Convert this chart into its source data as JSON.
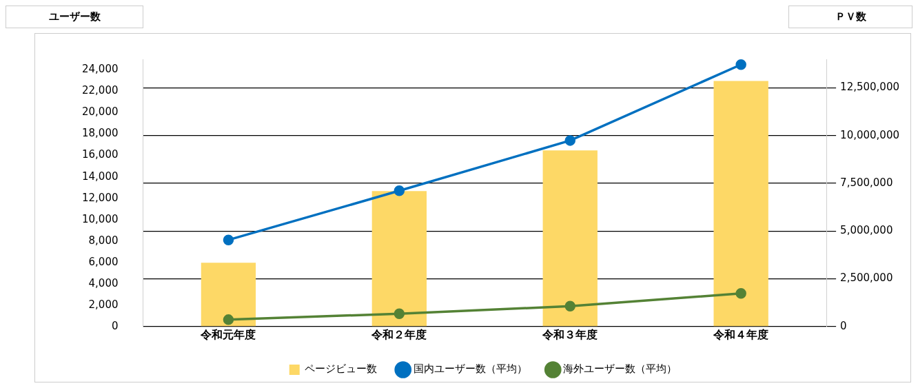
{
  "chart_data": {
    "type": "bar",
    "ylabel": "ユーザー数",
    "y2label": "ＰＶ数",
    "categories": [
      "令和元年度",
      "令和２年度",
      "令和３年度",
      "令和４年度"
    ],
    "series": [
      {
        "name": "ページビュー数",
        "axis": "y2",
        "color": "#fdd866",
        "values": [
          3340000,
          7100000,
          9230000,
          12860000
        ]
      },
      {
        "name": "国内ユーザー数（平均）",
        "type": "line",
        "axis": "y",
        "color": "#0070c0",
        "values": [
          8100,
          12700,
          17400,
          24500
        ]
      },
      {
        "name": "海外ユーザー数（平均）",
        "type": "line",
        "axis": "y",
        "color": "#548235",
        "values": [
          640,
          1200,
          1900,
          3100
        ]
      }
    ],
    "ylim": [
      0,
      25000
    ],
    "yticks": [
      0,
      {
        "value": 2000,
        "label": "2,000"
      },
      {
        "value": 4000,
        "label": "4,000"
      },
      {
        "value": 6000,
        "label": "6,000"
      },
      {
        "value": 8000,
        "label": "8,000"
      },
      {
        "value": 10000,
        "label": "10,000"
      },
      {
        "value": 12000,
        "label": "12,000"
      },
      {
        "value": 14000,
        "label": "14,000"
      },
      {
        "value": 16000,
        "label": "16,000"
      },
      {
        "value": 18000,
        "label": "18,000"
      },
      {
        "value": 20000,
        "label": "20,000"
      },
      {
        "value": 22000,
        "label": "22,000"
      },
      {
        "value": 24000,
        "label": "24,000"
      }
    ],
    "y2lim": [
      0,
      14000000
    ],
    "y2ticks": [
      0,
      {
        "value": 2500000,
        "label": "2,500,000"
      },
      {
        "value": 5000000,
        "label": "5,000,000"
      },
      {
        "value": 7500000,
        "label": "7,500,000"
      },
      {
        "value": 10000000,
        "label": "10,000,000"
      },
      {
        "value": 12500000,
        "label": "12,500,000"
      }
    ],
    "grid": "y",
    "legend": "bottom",
    "marker": "circle",
    "line_style": "solid"
  }
}
